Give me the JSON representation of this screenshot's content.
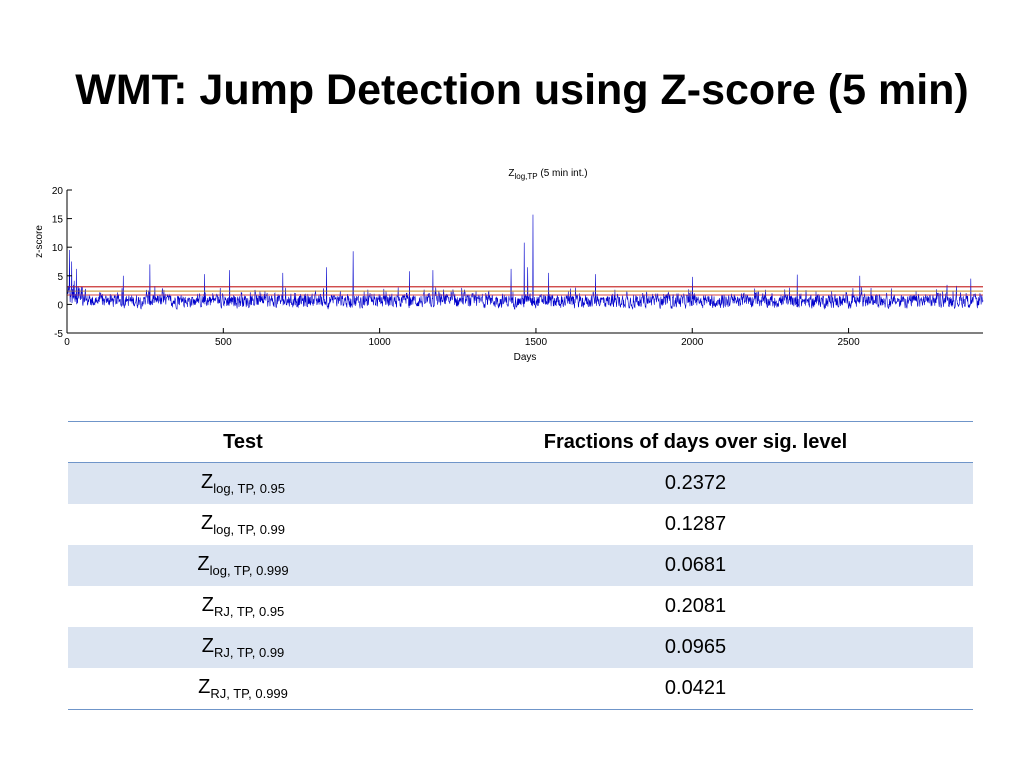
{
  "slide": {
    "title": "WMT: Jump Detection using Z-score (5 min)"
  },
  "chart_data": {
    "type": "line",
    "title_main": "Z",
    "title_sub": "log,TP",
    "title_suffix": " (5 min int.)",
    "xlabel": "Days",
    "ylabel": "z-score",
    "xlim": [
      0,
      2930
    ],
    "ylim": [
      -5,
      20
    ],
    "x_ticks": [
      0,
      500,
      1000,
      1500,
      2000,
      2500
    ],
    "y_ticks": [
      -5,
      0,
      5,
      10,
      15,
      20
    ],
    "series": [
      {
        "name": "Z log,TP",
        "color": "#0000cc",
        "n_points": 2930,
        "baseline_mean": 0.6,
        "noise_range": [
          -2,
          3.5
        ],
        "spikes": [
          {
            "x": 8,
            "y": 9.5
          },
          {
            "x": 15,
            "y": 7.5
          },
          {
            "x": 30,
            "y": 6.2
          },
          {
            "x": 180,
            "y": 5.0
          },
          {
            "x": 265,
            "y": 7.0
          },
          {
            "x": 440,
            "y": 5.3
          },
          {
            "x": 520,
            "y": 6.0
          },
          {
            "x": 690,
            "y": 5.5
          },
          {
            "x": 830,
            "y": 6.5
          },
          {
            "x": 915,
            "y": 9.3
          },
          {
            "x": 1095,
            "y": 5.8
          },
          {
            "x": 1170,
            "y": 6.0
          },
          {
            "x": 1420,
            "y": 6.2
          },
          {
            "x": 1462,
            "y": 10.8
          },
          {
            "x": 1473,
            "y": 6.5
          },
          {
            "x": 1490,
            "y": 15.7
          },
          {
            "x": 1540,
            "y": 5.5
          },
          {
            "x": 1690,
            "y": 5.3
          },
          {
            "x": 2000,
            "y": 4.8
          },
          {
            "x": 2335,
            "y": 5.2
          },
          {
            "x": 2535,
            "y": 5.0
          },
          {
            "x": 2890,
            "y": 4.5
          }
        ]
      }
    ],
    "threshold_lines": [
      {
        "name": "0.95",
        "y": 1.645,
        "color": "#e06a6a"
      },
      {
        "name": "0.99",
        "y": 2.326,
        "color": "#d4a24a"
      },
      {
        "name": "0.999",
        "y": 3.09,
        "color": "#cc3a3a"
      }
    ]
  },
  "table": {
    "headers": [
      "Test",
      "Fractions of days over sig. level"
    ],
    "rows": [
      {
        "z": "Z",
        "sub": "log, TP, 0.95",
        "value": "0.2372"
      },
      {
        "z": "Z",
        "sub": "log, TP, 0.99",
        "value": "0.1287"
      },
      {
        "z": "Z",
        "sub": "log, TP, 0.999",
        "value": "0.0681"
      },
      {
        "z": "Z",
        "sub": "RJ, TP, 0.95",
        "value": "0.2081"
      },
      {
        "z": "Z",
        "sub": "RJ, TP, 0.99",
        "value": "0.0965"
      },
      {
        "z": "Z",
        "sub": "RJ, TP, 0.999",
        "value": "0.0421"
      }
    ]
  }
}
